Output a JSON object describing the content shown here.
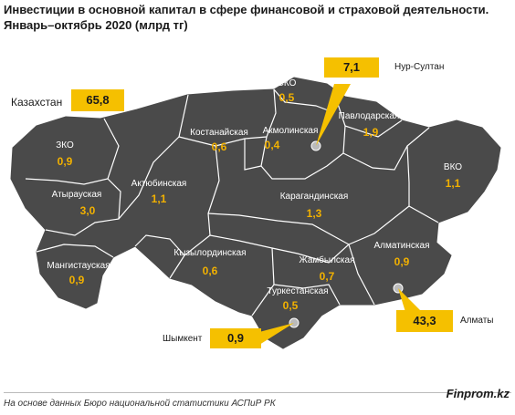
{
  "title": {
    "line1": "Инвестиции  в основной капитал в сфере финансовой и страховой деятельности.",
    "line2": "Январь–октябрь 2020 (млрд тг)"
  },
  "total": {
    "label": "Казахстан",
    "value": "65,8"
  },
  "regions": [
    {
      "key": "zko",
      "name": "ЗКО",
      "value": "0,9"
    },
    {
      "key": "atyrau",
      "name": "Атырауская",
      "value": "3,0"
    },
    {
      "key": "mangystau",
      "name": "Мангистауская",
      "value": "0,9"
    },
    {
      "key": "aktobe",
      "name": "Актюбинская",
      "value": "1,1"
    },
    {
      "key": "kostanay",
      "name": "Костанайская",
      "value": "0,6"
    },
    {
      "key": "sko",
      "name": "СКО",
      "value": "0,5"
    },
    {
      "key": "akmola",
      "name": "Акмолинская",
      "value": "0,4"
    },
    {
      "key": "pavlodar",
      "name": "Павлодарская",
      "value": "1,9"
    },
    {
      "key": "vko",
      "name": "ВКО",
      "value": "1,1"
    },
    {
      "key": "karaganda",
      "name": "Карагандинская",
      "value": "1,3"
    },
    {
      "key": "kyzylorda",
      "name": "Кызылординская",
      "value": "0,6"
    },
    {
      "key": "zhambyl",
      "name": "Жамбылская",
      "value": "0,7"
    },
    {
      "key": "almaty-region",
      "name": "Алматинская",
      "value": "0,9"
    },
    {
      "key": "turkestan",
      "name": "Туркестанская",
      "value": "0,5"
    }
  ],
  "cities": [
    {
      "key": "nur-sultan",
      "name": "Нур-Султан",
      "value": "7,1"
    },
    {
      "key": "almaty",
      "name": "Алматы",
      "value": "43,3"
    },
    {
      "key": "shymkent",
      "name": "Шымкент",
      "value": "0,9"
    }
  ],
  "colors": {
    "land": "#4a4a4a",
    "border": "#ffffff",
    "accent": "#f5c000",
    "value_text": "#f2b100"
  },
  "footer": {
    "source": "На основе данных Бюро национальной статистики АСПиР РК",
    "brand": "Finprom.kz"
  }
}
